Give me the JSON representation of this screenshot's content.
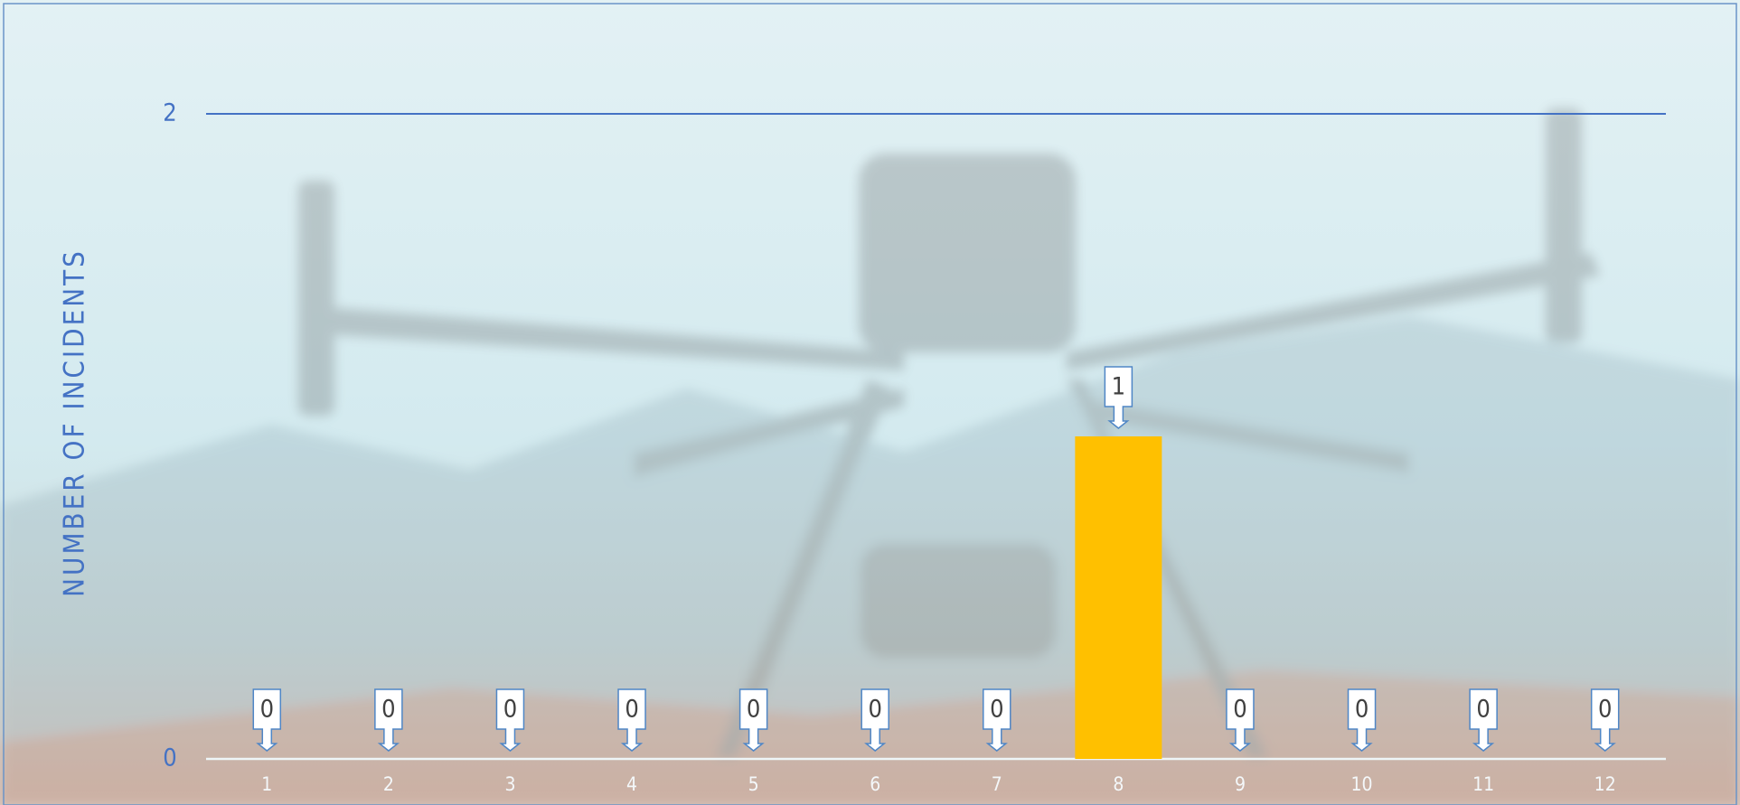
{
  "chart_data": {
    "type": "bar",
    "y_axis_label": "NUMBER OF INCIDENTS",
    "categories": [
      "1",
      "2",
      "3",
      "4",
      "5",
      "6",
      "7",
      "8",
      "9",
      "10",
      "11",
      "12"
    ],
    "values": [
      0,
      0,
      0,
      0,
      0,
      0,
      0,
      1,
      0,
      0,
      0,
      0
    ],
    "color": "#ffc000",
    "ylim": [
      0,
      2
    ],
    "yticks": [
      0,
      2
    ],
    "grid": true,
    "data_labels": true
  }
}
